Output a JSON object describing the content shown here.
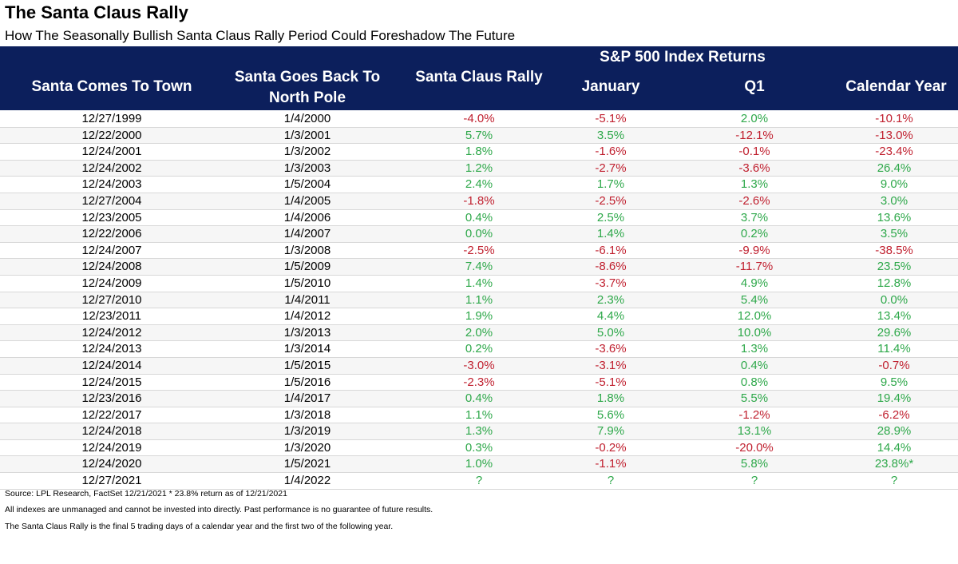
{
  "title": "The Santa Claus Rally",
  "subtitle": "How The Seasonally Bullish Santa Claus Rally Period Could Foreshadow The Future",
  "header": {
    "group_label": "S&P 500 Index Returns",
    "columns": [
      "Santa Comes To Town",
      "Santa Goes Back To North Pole",
      "Santa Claus Rally",
      "January",
      "Q1",
      "Calendar Year"
    ]
  },
  "colors": {
    "header_bg": "#0c1f5c",
    "positive": "#2ea84a",
    "negative": "#c0202f",
    "neutral": "#2ea84a"
  },
  "chart_data": {
    "type": "table",
    "columns": [
      "Santa Comes To Town",
      "Santa Goes Back To North Pole",
      "Santa Claus Rally",
      "January",
      "Q1",
      "Calendar Year"
    ],
    "rows": [
      [
        "12/27/1999",
        "1/4/2000",
        "-4.0%",
        "-5.1%",
        "2.0%",
        "-10.1%"
      ],
      [
        "12/22/2000",
        "1/3/2001",
        "5.7%",
        "3.5%",
        "-12.1%",
        "-13.0%"
      ],
      [
        "12/24/2001",
        "1/3/2002",
        "1.8%",
        "-1.6%",
        "-0.1%",
        "-23.4%"
      ],
      [
        "12/24/2002",
        "1/3/2003",
        "1.2%",
        "-2.7%",
        "-3.6%",
        "26.4%"
      ],
      [
        "12/24/2003",
        "1/5/2004",
        "2.4%",
        "1.7%",
        "1.3%",
        "9.0%"
      ],
      [
        "12/27/2004",
        "1/4/2005",
        "-1.8%",
        "-2.5%",
        "-2.6%",
        "3.0%"
      ],
      [
        "12/23/2005",
        "1/4/2006",
        "0.4%",
        "2.5%",
        "3.7%",
        "13.6%"
      ],
      [
        "12/22/2006",
        "1/4/2007",
        "0.0%",
        "1.4%",
        "0.2%",
        "3.5%"
      ],
      [
        "12/24/2007",
        "1/3/2008",
        "-2.5%",
        "-6.1%",
        "-9.9%",
        "-38.5%"
      ],
      [
        "12/24/2008",
        "1/5/2009",
        "7.4%",
        "-8.6%",
        "-11.7%",
        "23.5%"
      ],
      [
        "12/24/2009",
        "1/5/2010",
        "1.4%",
        "-3.7%",
        "4.9%",
        "12.8%"
      ],
      [
        "12/27/2010",
        "1/4/2011",
        "1.1%",
        "2.3%",
        "5.4%",
        "0.0%"
      ],
      [
        "12/23/2011",
        "1/4/2012",
        "1.9%",
        "4.4%",
        "12.0%",
        "13.4%"
      ],
      [
        "12/24/2012",
        "1/3/2013",
        "2.0%",
        "5.0%",
        "10.0%",
        "29.6%"
      ],
      [
        "12/24/2013",
        "1/3/2014",
        "0.2%",
        "-3.6%",
        "1.3%",
        "11.4%"
      ],
      [
        "12/24/2014",
        "1/5/2015",
        "-3.0%",
        "-3.1%",
        "0.4%",
        "-0.7%"
      ],
      [
        "12/24/2015",
        "1/5/2016",
        "-2.3%",
        "-5.1%",
        "0.8%",
        "9.5%"
      ],
      [
        "12/23/2016",
        "1/4/2017",
        "0.4%",
        "1.8%",
        "5.5%",
        "19.4%"
      ],
      [
        "12/22/2017",
        "1/3/2018",
        "1.1%",
        "5.6%",
        "-1.2%",
        "-6.2%"
      ],
      [
        "12/24/2018",
        "1/3/2019",
        "1.3%",
        "7.9%",
        "13.1%",
        "28.9%"
      ],
      [
        "12/24/2019",
        "1/3/2020",
        "0.3%",
        "-0.2%",
        "-20.0%",
        "14.4%"
      ],
      [
        "12/24/2020",
        "1/5/2021",
        "1.0%",
        "-1.1%",
        "5.8%",
        "23.8%*"
      ],
      [
        "12/27/2021",
        "1/4/2022",
        "?",
        "?",
        "?",
        "?"
      ]
    ]
  },
  "footnotes": [
    "Source: LPL Research, FactSet 12/21/2021  * 23.8% return as of 12/21/2021",
    "All indexes are unmanaged and cannot be invested into directly. Past performance is no guarantee of future results.",
    "The Santa Claus Rally is the final 5 trading days of a calendar year and the first two of the following year."
  ]
}
